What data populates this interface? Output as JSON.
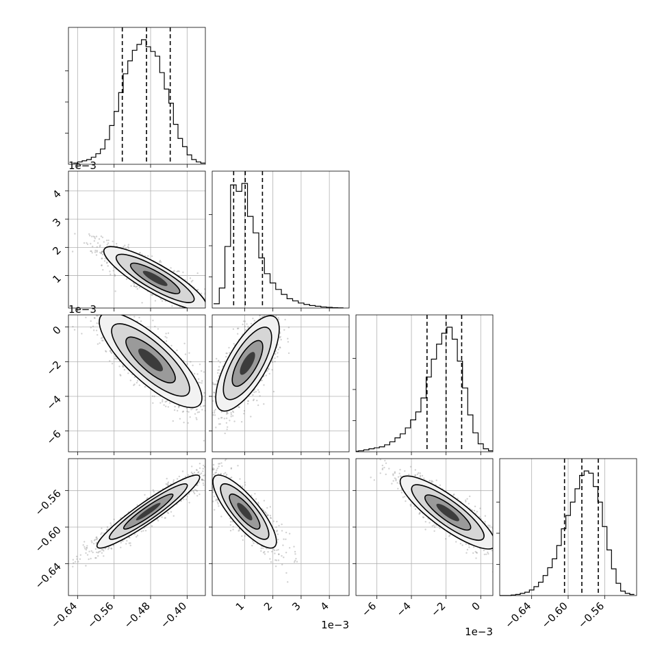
{
  "chart_data": {
    "type": "corner",
    "title": "",
    "parameters": 4,
    "ranges": [
      [
        -0.66,
        -0.36
      ],
      [
        -0.00015,
        0.0047
      ],
      [
        -0.0072,
        0.0007
      ],
      [
        -0.675,
        -0.525
      ]
    ],
    "ticks": [
      {
        "values": [
          -0.64,
          -0.56,
          -0.48,
          -0.4
        ],
        "labels": [
          "−0.64",
          "−0.56",
          "−0.48",
          "−0.40"
        ]
      },
      {
        "values": [
          0.001,
          0.002,
          0.003,
          0.004
        ],
        "labels": [
          "1",
          "2",
          "3",
          "4"
        ]
      },
      {
        "values": [
          -0.006,
          -0.004,
          -0.002,
          0.0
        ],
        "labels": [
          "−6",
          "−4",
          "−2",
          "0"
        ]
      },
      {
        "values": [
          -0.64,
          -0.6,
          -0.56
        ],
        "labels": [
          "−0.64",
          "−0.60",
          "−0.56"
        ]
      }
    ],
    "offset_labels": {
      "p1": "1e−3",
      "p2": "1e−3"
    },
    "quantiles": [
      [
        -0.542,
        -0.489,
        -0.437
      ],
      [
        0.00061,
        0.00102,
        0.00163
      ],
      [
        -0.0031,
        -0.002,
        -0.0011
      ],
      [
        -0.604,
        -0.585,
        -0.567
      ]
    ],
    "histograms": [
      {
        "x": [
          -0.645,
          -0.635,
          -0.625,
          -0.615,
          -0.605,
          -0.595,
          -0.585,
          -0.575,
          -0.565,
          -0.555,
          -0.545,
          -0.535,
          -0.525,
          -0.515,
          -0.505,
          -0.495,
          -0.485,
          -0.475,
          -0.465,
          -0.455,
          -0.445,
          -0.435,
          -0.425,
          -0.415,
          -0.405,
          -0.395,
          -0.385,
          -0.375,
          -0.365
        ],
        "values": [
          1,
          2,
          3,
          4,
          6,
          9,
          13,
          21,
          33,
          45,
          61,
          77,
          88,
          97,
          102,
          106,
          100,
          96,
          92,
          78,
          64,
          52,
          34,
          22,
          15,
          8,
          4,
          2,
          1
        ]
      },
      {
        "x": [
          0.0,
          0.0002,
          0.0004,
          0.0006,
          0.0008,
          0.001,
          0.0012,
          0.0014,
          0.0016,
          0.0018,
          0.002,
          0.0022,
          0.0024,
          0.0026,
          0.0028,
          0.003,
          0.0032,
          0.0034,
          0.0036,
          0.0038,
          0.004,
          0.0042,
          0.0044
        ],
        "values": [
          0.6,
          2.8,
          8.6,
          17.2,
          16.3,
          17.4,
          12.8,
          10.5,
          7.0,
          4.8,
          3.5,
          2.6,
          1.9,
          1.3,
          1.0,
          0.7,
          0.5,
          0.35,
          0.25,
          0.15,
          0.1,
          0.05,
          0.03
        ]
      },
      {
        "x": [
          -0.0072,
          -0.0069,
          -0.0066,
          -0.0063,
          -0.006,
          -0.0057,
          -0.0054,
          -0.0051,
          -0.0048,
          -0.0045,
          -0.0042,
          -0.0039,
          -0.0036,
          -0.0033,
          -0.003,
          -0.0027,
          -0.0024,
          -0.0021,
          -0.0018,
          -0.0015,
          -0.0012,
          -0.0009,
          -0.0006,
          -0.0003,
          0.0,
          0.0003,
          0.0006
        ],
        "values": [
          0.5,
          1,
          2,
          3,
          4,
          5,
          7,
          10,
          14,
          18,
          24,
          32,
          40,
          54,
          75,
          93,
          108,
          119,
          125,
          113,
          91,
          64,
          37,
          19,
          8,
          3,
          1
        ]
      },
      {
        "x": [
          -0.675,
          -0.67,
          -0.665,
          -0.66,
          -0.655,
          -0.65,
          -0.645,
          -0.64,
          -0.635,
          -0.63,
          -0.625,
          -0.62,
          -0.615,
          -0.61,
          -0.605,
          -0.6,
          -0.595,
          -0.59,
          -0.585,
          -0.58,
          -0.575,
          -0.57,
          -0.565,
          -0.56,
          -0.555,
          -0.55,
          -0.545,
          -0.54,
          -0.535,
          -0.53
        ],
        "values": [
          0,
          0,
          0,
          0.5,
          1,
          2,
          3,
          5,
          8,
          12,
          18,
          25,
          33,
          45,
          60,
          72,
          84,
          96,
          108,
          112,
          110,
          98,
          84,
          62,
          41,
          24,
          11,
          4,
          2,
          1
        ]
      }
    ],
    "pairs": [
      {
        "xparam": 0,
        "yparam": 1,
        "center": [
          -0.47,
          0.0009
        ],
        "scales": [
          0.045,
          0.00045
        ],
        "corr": -0.86
      },
      {
        "xparam": 0,
        "yparam": 2,
        "center": [
          -0.48,
          -0.0019
        ],
        "scales": [
          0.045,
          0.0011
        ],
        "corr": -0.8
      },
      {
        "xparam": 1,
        "yparam": 2,
        "center": [
          0.0011,
          -0.0021
        ],
        "scales": [
          0.00045,
          0.0011
        ],
        "corr": 0.72
      },
      {
        "xparam": 0,
        "yparam": 3,
        "center": [
          -0.485,
          -0.583
        ],
        "scales": [
          0.045,
          0.016
        ],
        "corr": 0.94
      },
      {
        "xparam": 1,
        "yparam": 3,
        "center": [
          0.001,
          -0.583
        ],
        "scales": [
          0.00045,
          0.016
        ],
        "corr": -0.82
      },
      {
        "xparam": 2,
        "yparam": 3,
        "center": [
          -0.0019,
          -0.584
        ],
        "scales": [
          0.0011,
          0.016
        ],
        "corr": -0.85
      }
    ],
    "grid": true,
    "legend": "none"
  }
}
